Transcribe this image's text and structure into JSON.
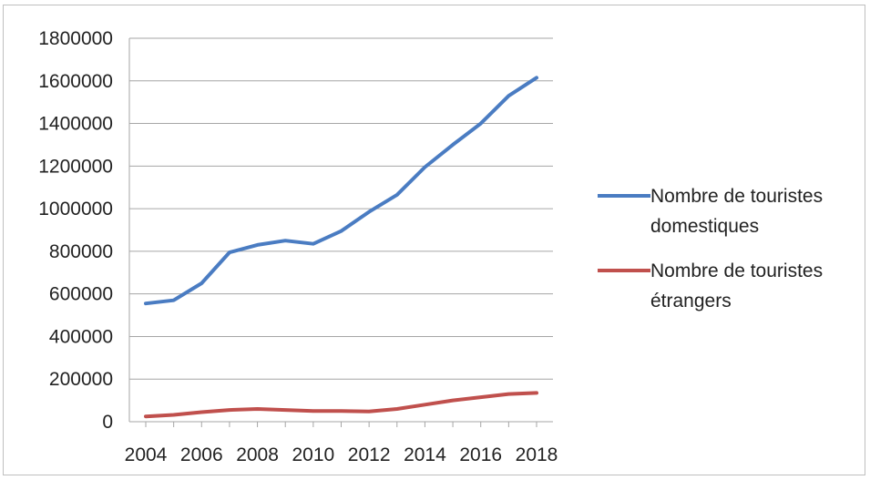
{
  "chart_data": {
    "type": "line",
    "title": "",
    "xlabel": "",
    "ylabel": "",
    "x": [
      2004,
      2005,
      2006,
      2007,
      2008,
      2009,
      2010,
      2011,
      2012,
      2013,
      2014,
      2015,
      2016,
      2017,
      2018
    ],
    "x_tick_labels": [
      "2004",
      "2006",
      "2008",
      "2010",
      "2012",
      "2014",
      "2016",
      "2018"
    ],
    "y_tick_labels": [
      "0",
      "200000",
      "400000",
      "600000",
      "800000",
      "1000000",
      "1200000",
      "1400000",
      "1600000",
      "1800000"
    ],
    "ylim": [
      0,
      1800000
    ],
    "grid": true,
    "legend_position": "right",
    "series": [
      {
        "name_lines": [
          "Nombre de touristes",
          "domestiques"
        ],
        "color": "#4a7cc2",
        "values": [
          555000,
          570000,
          650000,
          795000,
          830000,
          850000,
          835000,
          895000,
          985000,
          1065000,
          1195000,
          1300000,
          1400000,
          1530000,
          1615000
        ]
      },
      {
        "name_lines": [
          "Nombre de touristes",
          "étrangers"
        ],
        "color": "#c0504d",
        "values": [
          25000,
          32000,
          45000,
          55000,
          60000,
          55000,
          50000,
          50000,
          48000,
          60000,
          80000,
          100000,
          115000,
          130000,
          135000
        ]
      }
    ]
  }
}
